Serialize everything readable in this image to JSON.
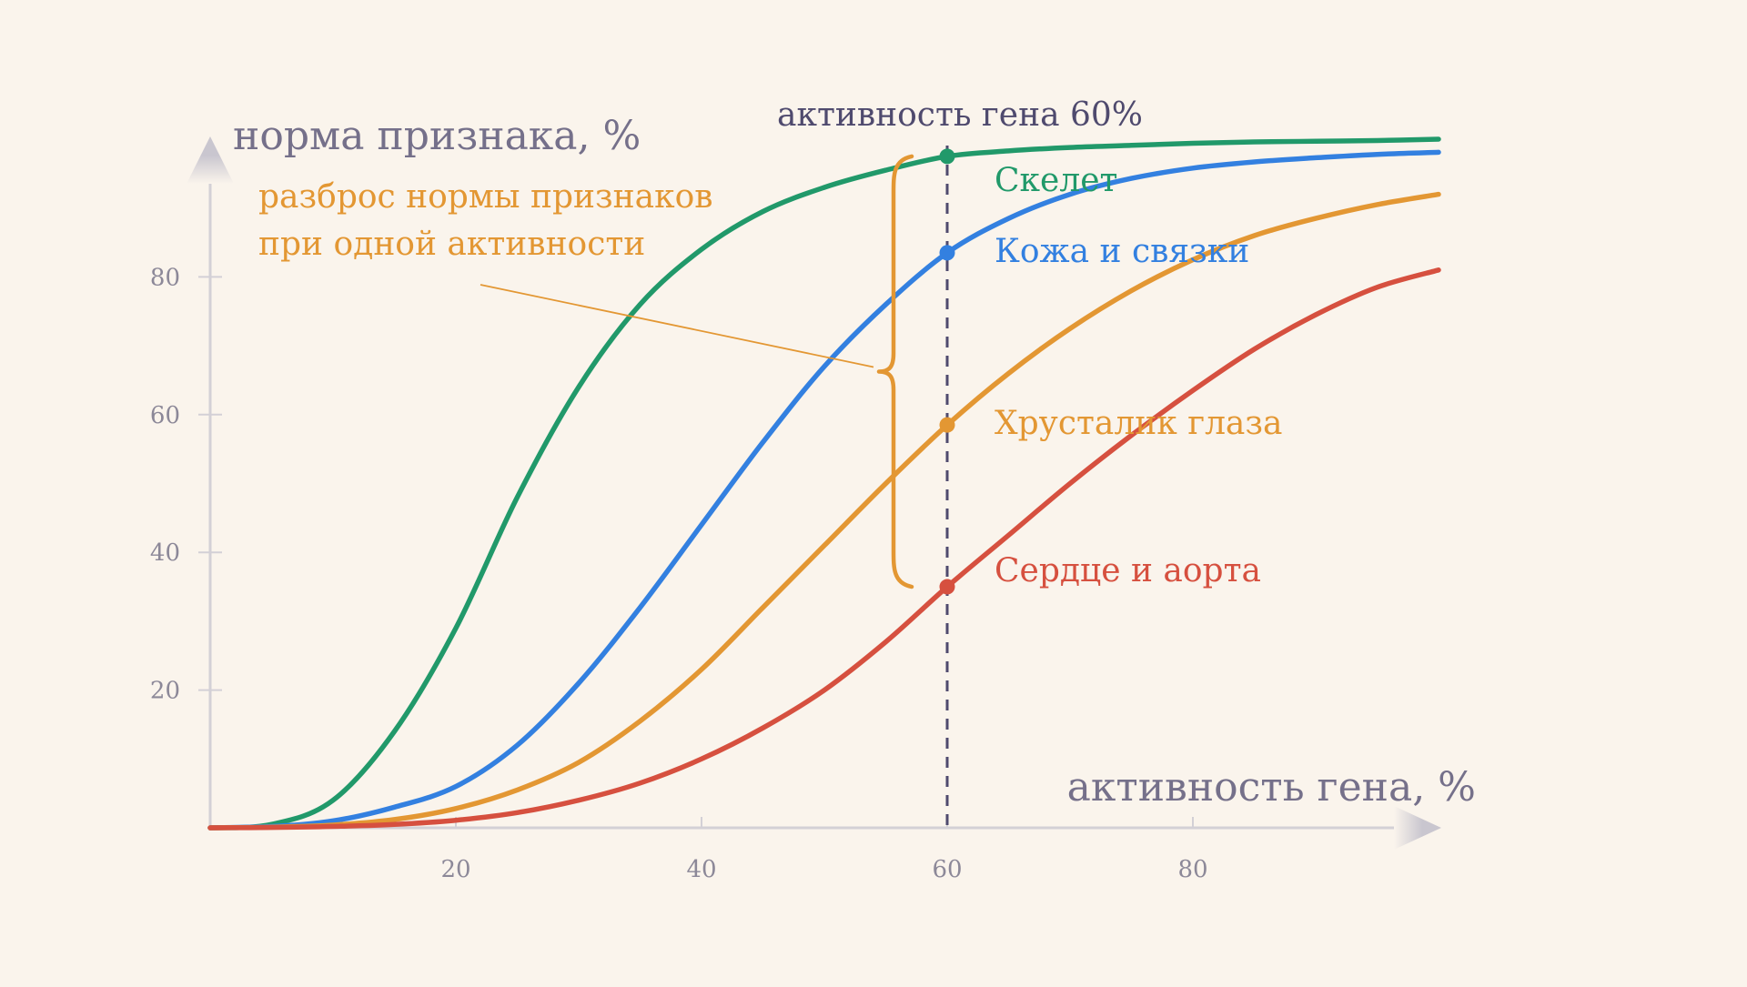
{
  "chart_data": {
    "type": "line",
    "title": "",
    "xlabel": "активность гена, %",
    "ylabel": "норма признака, %",
    "xlim": [
      0,
      100
    ],
    "ylim": [
      0,
      100
    ],
    "x_ticks": [
      20,
      40,
      60,
      80
    ],
    "y_ticks": [
      20,
      40,
      60,
      80
    ],
    "grid": false,
    "marker_line": {
      "x": 60,
      "label": "активность гена 60%",
      "color": "#4f4a6e",
      "style": "dashed"
    },
    "series": [
      {
        "name": "Скелет",
        "color": "#21996a",
        "x": [
          0,
          5,
          10,
          15,
          20,
          25,
          30,
          35,
          40,
          45,
          50,
          55,
          60,
          65,
          70,
          75,
          80,
          85,
          90,
          95,
          100
        ],
        "y": [
          0,
          0.5,
          4,
          14,
          29,
          48,
          64,
          76,
          84,
          89.5,
          93,
          95.5,
          97.5,
          98.3,
          98.8,
          99.1,
          99.4,
          99.6,
          99.7,
          99.8,
          100
        ],
        "value_at_marker": 97.5
      },
      {
        "name": "Кожа и связки",
        "color": "#3380e0",
        "x": [
          0,
          5,
          10,
          15,
          20,
          25,
          30,
          35,
          40,
          45,
          50,
          55,
          60,
          65,
          70,
          75,
          80,
          85,
          90,
          95,
          100
        ],
        "y": [
          0,
          0.2,
          1,
          3,
          6,
          12,
          21,
          32,
          44,
          56,
          67,
          76,
          83.5,
          88.5,
          92,
          94.3,
          95.8,
          96.7,
          97.3,
          97.8,
          98.1
        ],
        "value_at_marker": 83.5
      },
      {
        "name": "Хрусталик глаза",
        "color": "#e39733",
        "x": [
          0,
          5,
          10,
          15,
          20,
          25,
          30,
          35,
          40,
          45,
          50,
          55,
          60,
          65,
          70,
          75,
          80,
          85,
          90,
          95,
          100
        ],
        "y": [
          0,
          0.1,
          0.4,
          1.2,
          2.8,
          5.5,
          9.5,
          15.5,
          23,
          32,
          41,
          50,
          58.5,
          66,
          72.5,
          78,
          82.5,
          86,
          88.5,
          90.5,
          92
        ],
        "value_at_marker": 58.5
      },
      {
        "name": "Сердце и аорта",
        "color": "#d6503f",
        "x": [
          0,
          5,
          10,
          15,
          20,
          25,
          30,
          35,
          40,
          45,
          50,
          55,
          60,
          65,
          70,
          75,
          80,
          85,
          90,
          95,
          100
        ],
        "y": [
          0,
          0.05,
          0.2,
          0.5,
          1.1,
          2.2,
          4,
          6.5,
          10,
          14.5,
          20,
          27,
          35,
          42.5,
          50,
          57,
          63.5,
          69.5,
          74.5,
          78.5,
          81
        ],
        "value_at_marker": 35
      }
    ],
    "annotation": {
      "text_lines": [
        "разброс нормы признаков",
        "при одной активности"
      ],
      "color": "#e39733",
      "brace_range": [
        35,
        97.5
      ]
    }
  }
}
